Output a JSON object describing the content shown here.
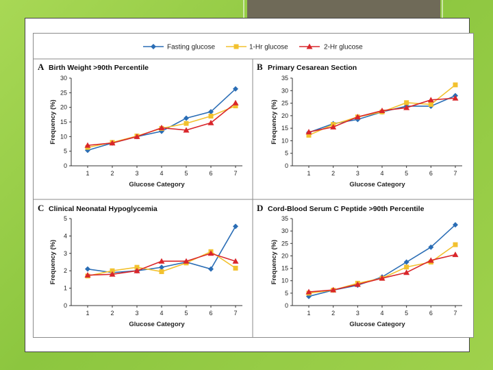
{
  "legend": {
    "series_names": [
      "Fasting glucose",
      "1-Hr glucose",
      "2-Hr glucose"
    ],
    "placement": "top-center"
  },
  "colors": {
    "fasting": "#2a6db5",
    "one_hr": "#f2c12e",
    "two_hr": "#d9262b",
    "title_block": "#6f6a58",
    "background": "#8cc63f"
  },
  "chart_data": [
    {
      "type": "line",
      "letter": "A",
      "title": "Birth Weight >90th Percentile",
      "xlabel": "Glucose Category",
      "ylabel": "Frequency (%)",
      "ylim": [
        0,
        30
      ],
      "yticks": [
        "0",
        "5",
        "10",
        "15",
        "20",
        "25",
        "30"
      ],
      "categories": [
        "1",
        "2",
        "3",
        "4",
        "5",
        "6",
        "7"
      ],
      "series": [
        {
          "name": "Fasting glucose",
          "values": [
            5.3,
            7.8,
            10.0,
            11.8,
            16.3,
            18.5,
            26.3
          ]
        },
        {
          "name": "1-Hr glucose",
          "values": [
            6.3,
            8.0,
            10.2,
            12.8,
            14.5,
            17.0,
            20.5
          ]
        },
        {
          "name": "2-Hr glucose",
          "values": [
            7.0,
            7.8,
            10.0,
            13.0,
            12.2,
            14.7,
            21.5
          ]
        }
      ]
    },
    {
      "type": "line",
      "letter": "B",
      "title": "Primary Cesarean Section",
      "xlabel": "Glucose Category",
      "ylabel": "Frequency (%)",
      "ylim": [
        0,
        35
      ],
      "yticks": [
        "0",
        "5",
        "10",
        "15",
        "20",
        "25",
        "30",
        "35"
      ],
      "categories": [
        "1",
        "2",
        "3",
        "4",
        "5",
        "6",
        "7"
      ],
      "series": [
        {
          "name": "Fasting glucose",
          "values": [
            13.3,
            16.8,
            18.5,
            21.5,
            23.8,
            23.8,
            28.0
          ]
        },
        {
          "name": "1-Hr glucose",
          "values": [
            12.2,
            16.5,
            19.5,
            21.5,
            25.2,
            24.5,
            32.3
          ]
        },
        {
          "name": "2-Hr glucose",
          "values": [
            13.5,
            15.5,
            19.5,
            22.0,
            23.2,
            26.3,
            27.0
          ]
        }
      ]
    },
    {
      "type": "line",
      "letter": "C",
      "title": "Clinical Neonatal Hypoglycemia",
      "xlabel": "Glucose Category",
      "ylabel": "Frequency (%)",
      "ylim": [
        0,
        5
      ],
      "yticks": [
        "0",
        "1",
        "2",
        "3",
        "4",
        "5"
      ],
      "categories": [
        "1",
        "2",
        "3",
        "4",
        "5",
        "6",
        "7"
      ],
      "series": [
        {
          "name": "Fasting glucose",
          "values": [
            2.1,
            1.9,
            2.0,
            2.2,
            2.5,
            2.1,
            4.55
          ]
        },
        {
          "name": "1-Hr glucose",
          "values": [
            1.7,
            2.0,
            2.2,
            1.95,
            2.45,
            3.1,
            2.15
          ]
        },
        {
          "name": "2-Hr glucose",
          "values": [
            1.75,
            1.8,
            2.0,
            2.55,
            2.55,
            3.0,
            2.55
          ]
        }
      ]
    },
    {
      "type": "line",
      "letter": "D",
      "title": "Cord-Blood Serum C Peptide >90th Percentile",
      "xlabel": "Glucose Category",
      "ylabel": "Frequency (%)",
      "ylim": [
        0,
        35
      ],
      "yticks": [
        "0",
        "5",
        "10",
        "15",
        "20",
        "25",
        "30",
        "35"
      ],
      "categories": [
        "1",
        "2",
        "3",
        "4",
        "5",
        "6",
        "7"
      ],
      "series": [
        {
          "name": "Fasting glucose",
          "values": [
            3.7,
            6.2,
            8.2,
            11.5,
            17.5,
            23.5,
            32.5
          ]
        },
        {
          "name": "1-Hr glucose",
          "values": [
            5.0,
            6.2,
            9.0,
            11.0,
            15.5,
            17.5,
            24.5
          ]
        },
        {
          "name": "2-Hr glucose",
          "values": [
            5.5,
            6.3,
            8.5,
            11.0,
            13.3,
            18.2,
            20.5
          ]
        }
      ]
    }
  ]
}
